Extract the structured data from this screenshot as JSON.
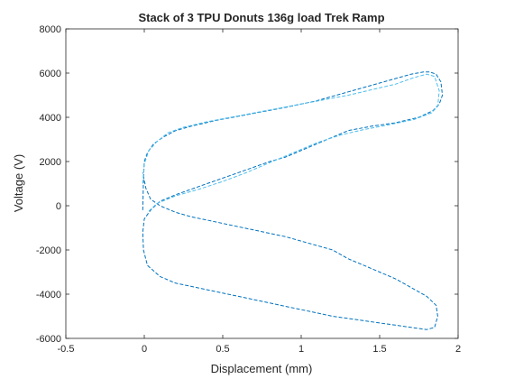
{
  "chart_data": {
    "type": "line",
    "title": "Stack of 3 TPU Donuts 136g load Trek Ramp",
    "xlabel": "Displacement (mm)",
    "ylabel": "Voltage (V)",
    "xlim": [
      -0.5,
      2
    ],
    "ylim": [
      -6000,
      8000
    ],
    "x_ticks": [
      -0.5,
      0,
      0.5,
      1,
      1.5,
      2
    ],
    "x_tick_labels": [
      "-0.5",
      "0",
      "0.5",
      "1",
      "1.5",
      "2"
    ],
    "y_ticks": [
      -6000,
      -4000,
      -2000,
      0,
      2000,
      4000,
      6000,
      8000
    ],
    "y_tick_labels": [
      "-6000",
      "-4000",
      "-2000",
      "0",
      "2000",
      "4000",
      "6000",
      "8000"
    ],
    "grid": false,
    "legend": "none",
    "line_style": "dashed",
    "series": [
      {
        "color": "#0072BD",
        "x": [
          -0.01,
          -0.005,
          0.0,
          0.02,
          0.06,
          0.12,
          0.2,
          0.3,
          0.45,
          0.6,
          0.75,
          0.9,
          1.0,
          1.1,
          1.2,
          1.3,
          1.4,
          1.5,
          1.6,
          1.7,
          1.78,
          1.82,
          1.86,
          1.89,
          1.9,
          1.88,
          1.84,
          1.75,
          1.6,
          1.45,
          1.3,
          1.2,
          1.1,
          1.0,
          0.9,
          0.8,
          0.7,
          0.6,
          0.5,
          0.4,
          0.3,
          0.2,
          0.1,
          0.04,
          0.0,
          -0.01,
          -0.005,
          0.02,
          0.1,
          0.2,
          0.3,
          0.4,
          0.5,
          0.6,
          0.7,
          0.8,
          0.9,
          1.0,
          1.1,
          1.2,
          1.3,
          1.4,
          1.5,
          1.6,
          1.7,
          1.8,
          1.85,
          1.87,
          1.86,
          1.8,
          1.7,
          1.6,
          1.5,
          1.4,
          1.3,
          1.2,
          1.1,
          1.0,
          0.9,
          0.8,
          0.7,
          0.6,
          0.5,
          0.4,
          0.3,
          0.2,
          0.1,
          0.04,
          0.01,
          -0.01
        ],
        "y": [
          -200,
          1200,
          2000,
          2400,
          2800,
          3100,
          3400,
          3600,
          3850,
          4050,
          4250,
          4450,
          4600,
          4750,
          4950,
          5150,
          5350,
          5550,
          5750,
          5950,
          6050,
          6050,
          5950,
          5600,
          5000,
          4600,
          4300,
          4000,
          3750,
          3600,
          3400,
          3100,
          2800,
          2500,
          2200,
          2000,
          1750,
          1500,
          1250,
          1000,
          750,
          500,
          200,
          -200,
          -600,
          -1200,
          -2000,
          -2700,
          -3200,
          -3500,
          -3650,
          -3800,
          -3950,
          -4100,
          -4250,
          -4400,
          -4550,
          -4700,
          -4850,
          -5000,
          -5100,
          -5200,
          -5300,
          -5400,
          -5500,
          -5600,
          -5500,
          -5000,
          -4500,
          -4100,
          -3700,
          -3300,
          -3000,
          -2700,
          -2400,
          -2000,
          -1800,
          -1600,
          -1400,
          -1250,
          -1100,
          -950,
          -800,
          -650,
          -500,
          -300,
          0,
          300,
          800,
          1500
        ]
      },
      {
        "color": "#4DBEEE",
        "x": [
          -0.01,
          0.0,
          0.03,
          0.08,
          0.15,
          0.25,
          0.4,
          0.55,
          0.7,
          0.85,
          1.0,
          1.15,
          1.3,
          1.45,
          1.6,
          1.72,
          1.8,
          1.85,
          1.88,
          1.87,
          1.83,
          1.72,
          1.55,
          1.4,
          1.25,
          1.1,
          0.95,
          0.8,
          0.65,
          0.5,
          0.35,
          0.2,
          0.08,
          0.02
        ],
        "y": [
          1000,
          1900,
          2500,
          2900,
          3300,
          3550,
          3800,
          4000,
          4200,
          4400,
          4600,
          4800,
          5000,
          5250,
          5500,
          5800,
          5950,
          5850,
          5200,
          4500,
          4200,
          3900,
          3650,
          3450,
          3200,
          2850,
          2400,
          1950,
          1500,
          1100,
          750,
          450,
          100,
          -300
        ]
      }
    ]
  }
}
